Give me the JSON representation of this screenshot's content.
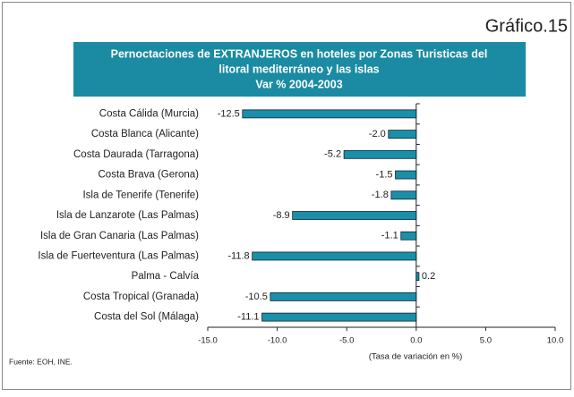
{
  "chart_data": {
    "type": "barh",
    "corner_label": "Gráfico.15",
    "title": [
      "Pernoctaciones de EXTRANJEROS en hoteles  por Zonas Turisticas del",
      "litoral mediterráneo y las islas",
      "Var % 2004-2003"
    ],
    "categories": [
      "Costa Cálida (Murcia)",
      "Costa Blanca (Alicante)",
      "Costa Daurada (Tarragona)",
      "Costa Brava (Gerona)",
      "Isla de Tenerife (Tenerife)",
      "Isla de Lanzarote (Las Palmas)",
      "Isla de Gran Canaria (Las Palmas)",
      "Isla de Fuerteventura (Las Palmas)",
      "Palma - Calvía",
      "Costa Tropical (Granada)",
      "Costa del Sol (Málaga)"
    ],
    "values": [
      -12.5,
      -2.0,
      -5.2,
      -1.5,
      -1.8,
      -8.9,
      -1.1,
      -11.8,
      0.2,
      -10.5,
      -11.1
    ],
    "value_labels": [
      "-12.5",
      "-2.0",
      "-5.2",
      "-1.5",
      "-1.8",
      "-8.9",
      "-1.1",
      "-11.8",
      "0.2",
      "-10.5",
      "-11.1"
    ],
    "color": "#1a90a8",
    "title_color": "#1a8ba3",
    "xlim": [
      -15,
      10
    ],
    "xticks": [
      {
        "value": -15,
        "label": "-15.0"
      },
      {
        "value": -10,
        "label": "-10.0"
      },
      {
        "value": -5,
        "label": "-5.0"
      },
      {
        "value": 0,
        "label": "0.0"
      },
      {
        "value": 5,
        "label": "5.0"
      },
      {
        "value": 10,
        "label": "10.0"
      }
    ],
    "xlabel": "(Tasa de variación en %)",
    "source": "Fuente: EOH, INE."
  }
}
